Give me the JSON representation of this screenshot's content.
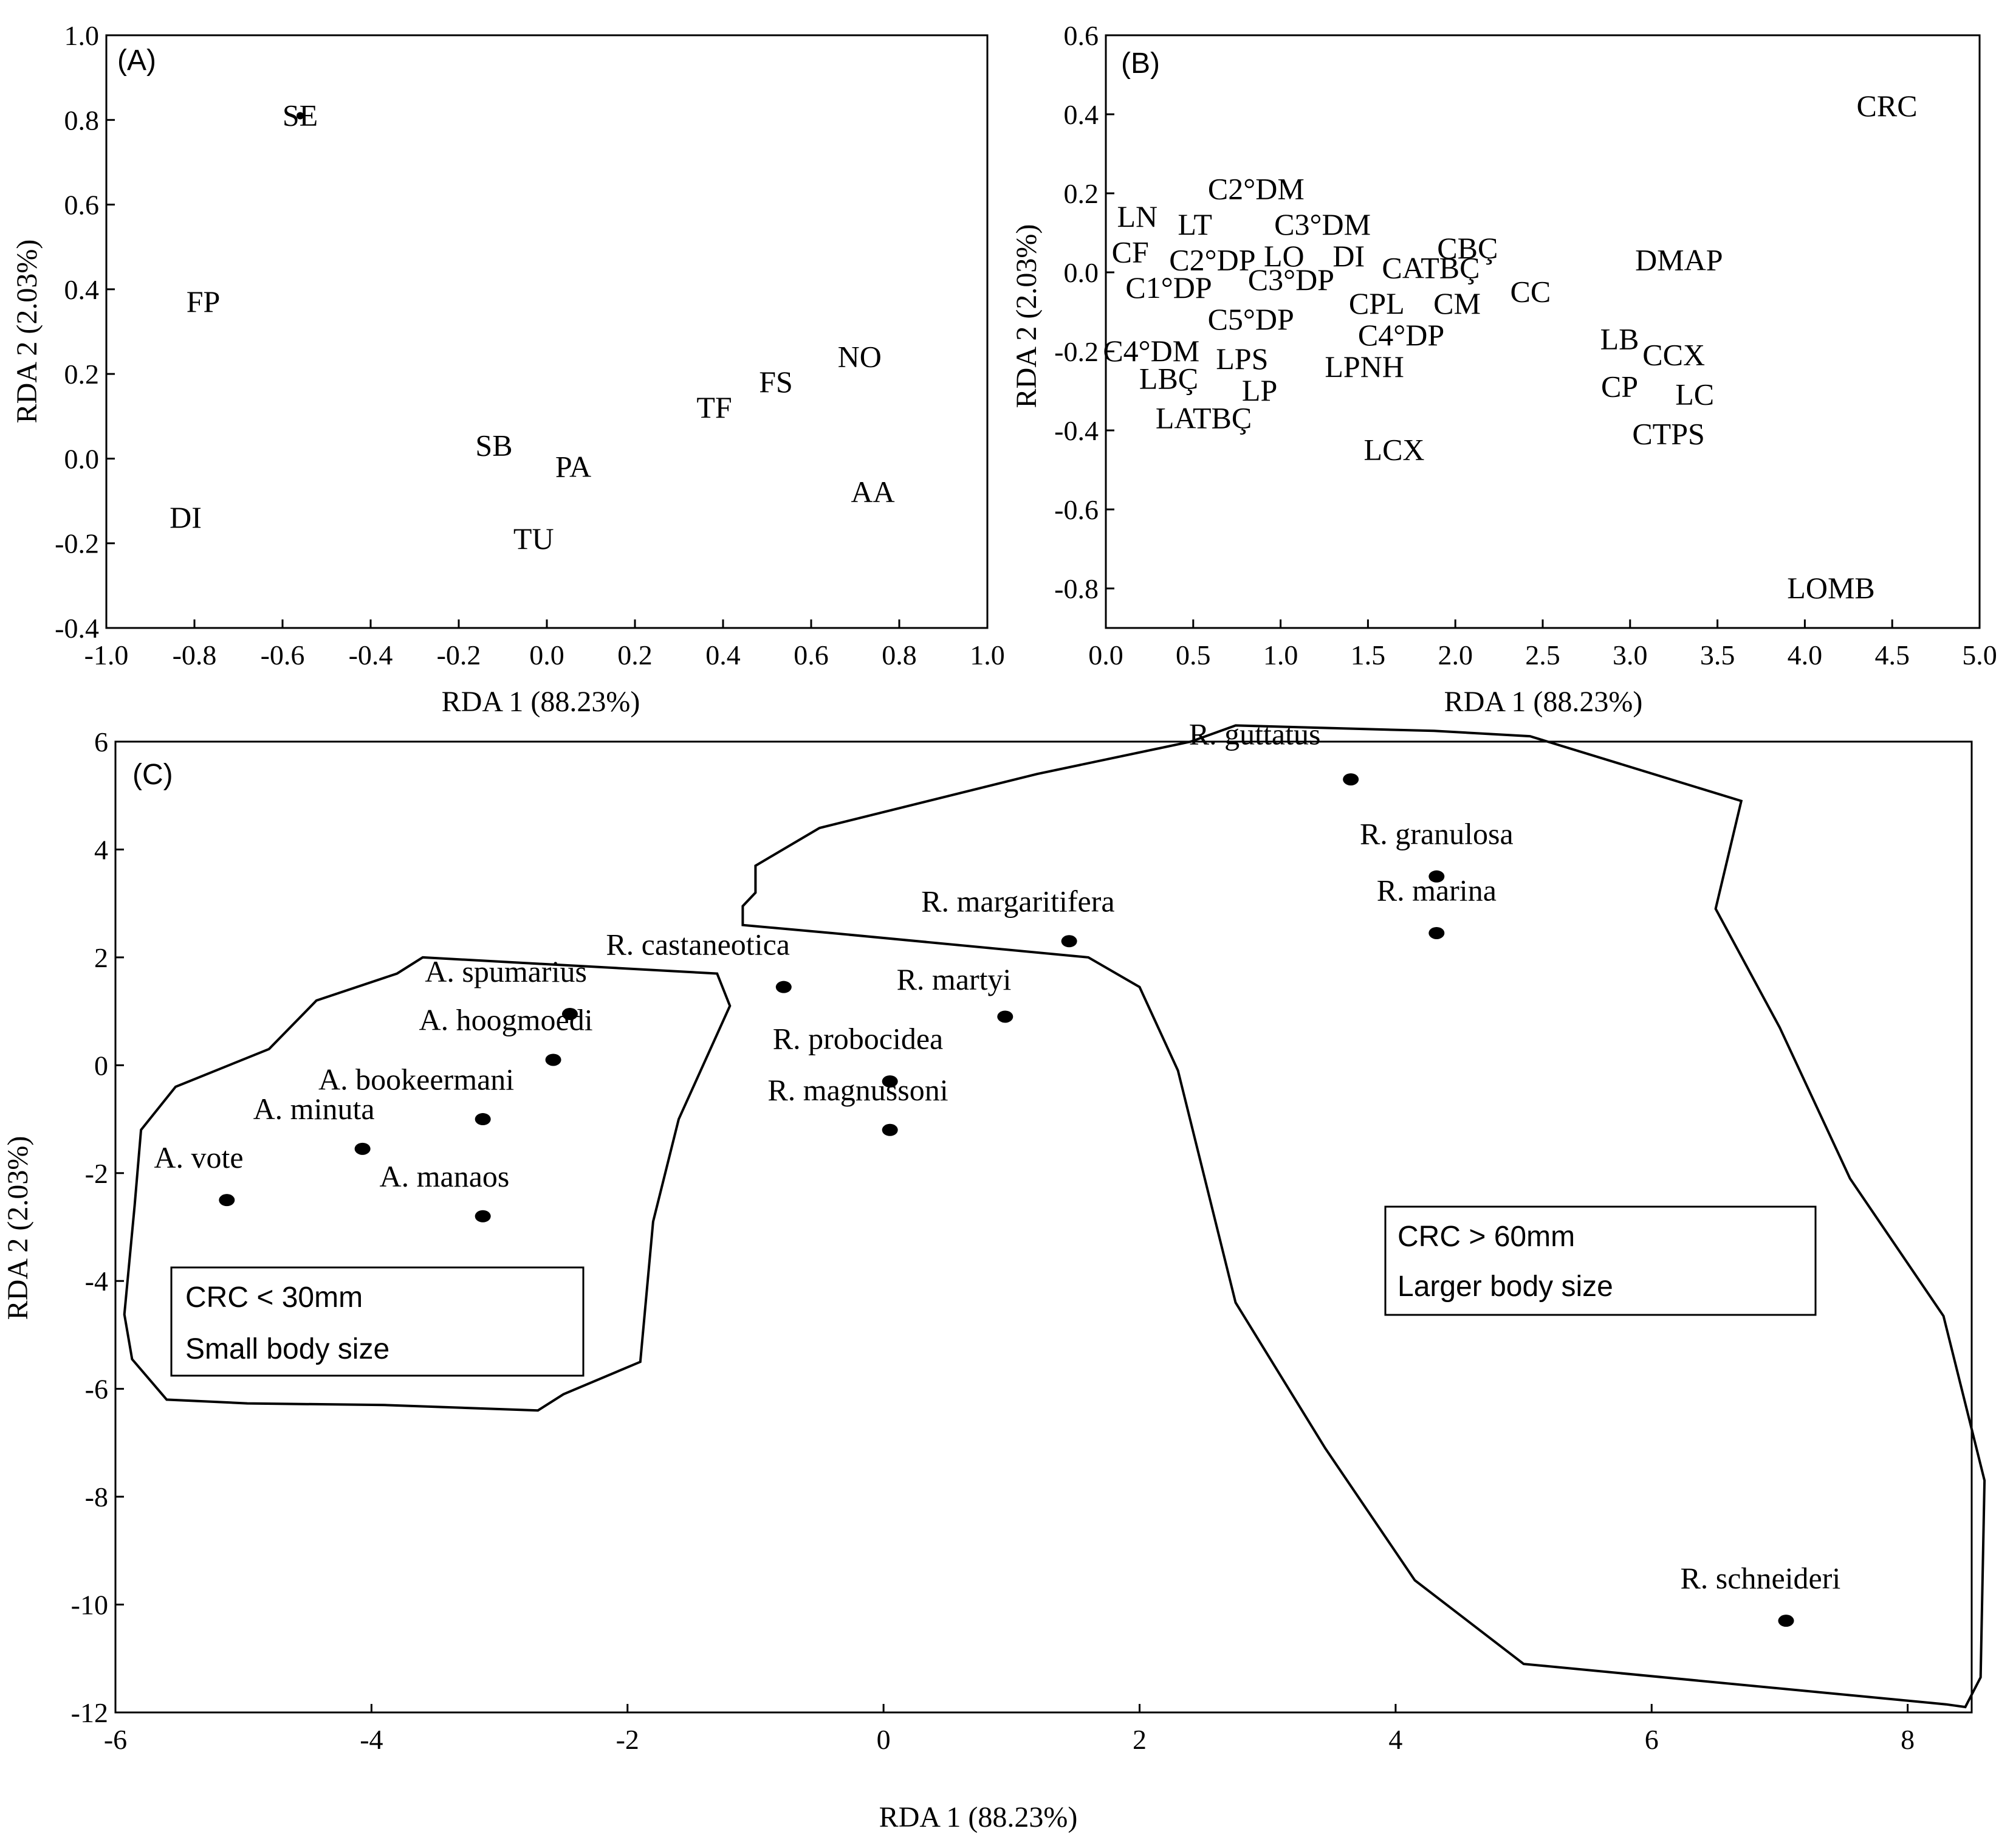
{
  "chart_data": [
    {
      "type": "scatter",
      "panel_label": "(A)",
      "xlabel": "RDA 1 (88.23%)",
      "ylabel": "RDA 2 (2.03%)",
      "xlim": [
        -1.0,
        1.0
      ],
      "ylim": [
        -0.4,
        1.0
      ],
      "xticks": [
        -1.0,
        -0.8,
        -0.6,
        -0.4,
        -0.2,
        0.0,
        0.2,
        0.4,
        0.6,
        0.8,
        1.0
      ],
      "yticks": [
        1.0,
        0.8,
        0.6,
        0.4,
        0.2,
        0.0,
        -0.2,
        -0.4
      ],
      "xtick_labels": [
        "-1.0",
        "-0.8",
        "-0.6",
        "-0.4",
        "-0.2",
        "0.0",
        "0.2",
        "0.4",
        "0.6",
        "0.8",
        "1.0"
      ],
      "ytick_labels": [
        "1.0",
        "0.8",
        "0.6",
        "0.4",
        "0.2",
        "0.0",
        "-0.2",
        "-0.4"
      ],
      "points": [
        {
          "label": "SE",
          "x": -0.56,
          "y": 0.81,
          "marker": true
        },
        {
          "label": "FP",
          "x": -0.78,
          "y": 0.37
        },
        {
          "label": "DI",
          "x": -0.82,
          "y": -0.14
        },
        {
          "label": "SB",
          "x": -0.12,
          "y": 0.03
        },
        {
          "label": "PA",
          "x": 0.06,
          "y": -0.02
        },
        {
          "label": "TU",
          "x": -0.03,
          "y": -0.19
        },
        {
          "label": "TF",
          "x": 0.38,
          "y": 0.12
        },
        {
          "label": "FS",
          "x": 0.52,
          "y": 0.18
        },
        {
          "label": "NO",
          "x": 0.71,
          "y": 0.24
        },
        {
          "label": "AA",
          "x": 0.74,
          "y": -0.08
        }
      ]
    },
    {
      "type": "scatter",
      "panel_label": "(B)",
      "xlabel": "RDA 1 (88.23%)",
      "ylabel": "RDA 2 (2.03%)",
      "xlim": [
        0.0,
        5.0
      ],
      "ylim": [
        -0.9,
        0.6
      ],
      "xticks": [
        0.0,
        0.5,
        1.0,
        1.5,
        2.0,
        2.5,
        3.0,
        3.5,
        4.0,
        4.5,
        5.0
      ],
      "yticks": [
        0.6,
        0.4,
        0.2,
        0.0,
        -0.2,
        -0.4,
        -0.6,
        -0.8
      ],
      "xtick_labels": [
        "0.0",
        "0.5",
        "1.0",
        "1.5",
        "2.0",
        "2.5",
        "3.0",
        "3.5",
        "4.0",
        "4.5",
        "5.0"
      ],
      "ytick_labels": [
        "0.6",
        "0.4",
        "0.2",
        "0.0",
        "-0.2",
        "-0.4",
        "-0.6",
        "-0.8"
      ],
      "points": [
        {
          "label": "CRC",
          "x": 4.47,
          "y": 0.42
        },
        {
          "label": "C2°DM",
          "x": 0.86,
          "y": 0.21
        },
        {
          "label": "LN",
          "x": 0.18,
          "y": 0.14
        },
        {
          "label": "LT",
          "x": 0.51,
          "y": 0.12
        },
        {
          "label": "C3°DM",
          "x": 1.24,
          "y": 0.12
        },
        {
          "label": "CF",
          "x": 0.14,
          "y": 0.05
        },
        {
          "label": "C2°DP",
          "x": 0.61,
          "y": 0.03
        },
        {
          "label": "LO",
          "x": 1.02,
          "y": 0.04
        },
        {
          "label": "DI",
          "x": 1.39,
          "y": 0.04
        },
        {
          "label": "CBÇ",
          "x": 2.07,
          "y": 0.06
        },
        {
          "label": "CATBÇ",
          "x": 1.86,
          "y": 0.01
        },
        {
          "label": "DMAP",
          "x": 3.28,
          "y": 0.03
        },
        {
          "label": "C1°DP",
          "x": 0.36,
          "y": -0.04
        },
        {
          "label": "C3°DP",
          "x": 1.06,
          "y": -0.02
        },
        {
          "label": "CC",
          "x": 2.43,
          "y": -0.05
        },
        {
          "label": "CPL",
          "x": 1.55,
          "y": -0.08
        },
        {
          "label": "CM",
          "x": 2.01,
          "y": -0.08
        },
        {
          "label": "C5°DP",
          "x": 0.83,
          "y": -0.12
        },
        {
          "label": "C4°DP",
          "x": 1.69,
          "y": -0.16
        },
        {
          "label": "LB",
          "x": 2.94,
          "y": -0.17
        },
        {
          "label": "C4°DM",
          "x": 0.26,
          "y": -0.2
        },
        {
          "label": "CCX",
          "x": 3.25,
          "y": -0.21
        },
        {
          "label": "LPS",
          "x": 0.78,
          "y": -0.22
        },
        {
          "label": "LPNH",
          "x": 1.48,
          "y": -0.24
        },
        {
          "label": "LBÇ",
          "x": 0.36,
          "y": -0.27
        },
        {
          "label": "CP",
          "x": 2.94,
          "y": -0.29
        },
        {
          "label": "LP",
          "x": 0.88,
          "y": -0.3
        },
        {
          "label": "LC",
          "x": 3.37,
          "y": -0.31
        },
        {
          "label": "LATBÇ",
          "x": 0.56,
          "y": -0.37
        },
        {
          "label": "CTPS",
          "x": 3.22,
          "y": -0.41
        },
        {
          "label": "LCX",
          "x": 1.65,
          "y": -0.45
        },
        {
          "label": "LOMB",
          "x": 4.15,
          "y": -0.8
        }
      ]
    },
    {
      "type": "scatter",
      "panel_label": "(C)",
      "xlabel": "RDA 1 (88.23%)",
      "ylabel": "RDA 2 (2.03%)",
      "xlim": [
        -6.0,
        8.5
      ],
      "ylim": [
        -12.0,
        6.0
      ],
      "xticks": [
        -6,
        -4,
        -2,
        0,
        2,
        4,
        6,
        8
      ],
      "yticks": [
        6,
        4,
        2,
        0,
        -2,
        -4,
        -6,
        -8,
        -10,
        -12
      ],
      "xtick_labels": [
        "-6",
        "-4",
        "-2",
        "0",
        "2",
        "4",
        "6",
        "8"
      ],
      "ytick_labels": [
        "6",
        "4",
        "2",
        "0",
        "-2",
        "-4",
        "-6",
        "-8",
        "-10",
        "-12"
      ],
      "points": [
        {
          "label": "R. guttatus",
          "x": 3.65,
          "y": 5.3,
          "lx": 2.9,
          "ly": 5.95
        },
        {
          "label": "R. granulosa",
          "x": 4.32,
          "y": 3.5,
          "lx": 4.32,
          "ly": 4.1
        },
        {
          "label": "R. marina",
          "x": 4.32,
          "y": 2.45,
          "lx": 4.32,
          "ly": 3.05
        },
        {
          "label": "R. margaritifera",
          "x": 1.45,
          "y": 2.3,
          "lx": 1.05,
          "ly": 2.85
        },
        {
          "label": "R. castaneotica",
          "x": -0.78,
          "y": 1.45,
          "lx": -1.45,
          "ly": 2.05
        },
        {
          "label": "R. martyi",
          "x": 0.95,
          "y": 0.9,
          "lx": 0.55,
          "ly": 1.4
        },
        {
          "label": "R. probocidea",
          "x": 0.05,
          "y": -0.3,
          "lx": -0.2,
          "ly": 0.3
        },
        {
          "label": "R. magnussoni",
          "x": 0.05,
          "y": -1.2,
          "lx": -0.2,
          "ly": -0.65
        },
        {
          "label": "R. schneideri",
          "x": 7.05,
          "y": -10.3,
          "lx": 6.85,
          "ly": -9.7
        },
        {
          "label": "A. spumarius",
          "x": -2.45,
          "y": 0.95,
          "lx": -2.95,
          "ly": 1.55
        },
        {
          "label": "A. hoogmoedi",
          "x": -2.58,
          "y": 0.1,
          "lx": -2.95,
          "ly": 0.65
        },
        {
          "label": "A. bookeermani",
          "x": -3.13,
          "y": -1.0,
          "lx": -3.65,
          "ly": -0.45
        },
        {
          "label": "A. minuta",
          "x": -4.07,
          "y": -1.55,
          "lx": -4.45,
          "ly": -1.0
        },
        {
          "label": "A. vote",
          "x": -5.13,
          "y": -2.5,
          "lx": -5.35,
          "ly": -1.9
        },
        {
          "label": "A. manaos",
          "x": -3.13,
          "y": -2.8,
          "lx": -3.43,
          "ly": -2.25
        }
      ],
      "groups": [
        {
          "label": "CRC < 30mm",
          "description": "Small body size"
        },
        {
          "label": "CRC > 60mm",
          "description": "Larger body size"
        }
      ]
    }
  ]
}
